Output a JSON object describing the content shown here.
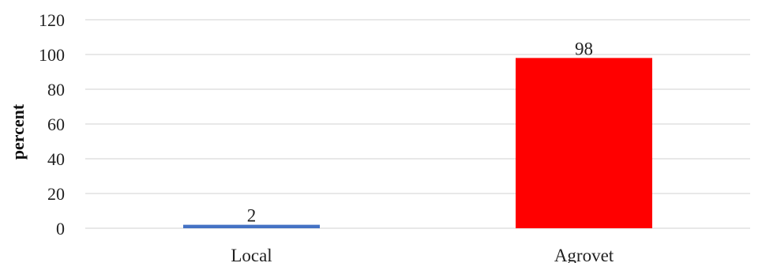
{
  "chart_data": {
    "type": "bar",
    "categories": [
      "Local",
      "Agrovet"
    ],
    "values": [
      2,
      98
    ],
    "data_labels": [
      "2",
      "98"
    ],
    "bar_colors": [
      "#4472C4",
      "#FF0000"
    ],
    "title": "",
    "xlabel": "",
    "ylabel": "percent",
    "ylim": [
      0,
      120
    ],
    "yticks": [
      0,
      20,
      40,
      60,
      80,
      100,
      120
    ],
    "ytick_labels": [
      "0",
      "20",
      "40",
      "60",
      "80",
      "100",
      "120"
    ],
    "grid": true,
    "legend": "none",
    "gridline_color": "#d9d9d9"
  }
}
